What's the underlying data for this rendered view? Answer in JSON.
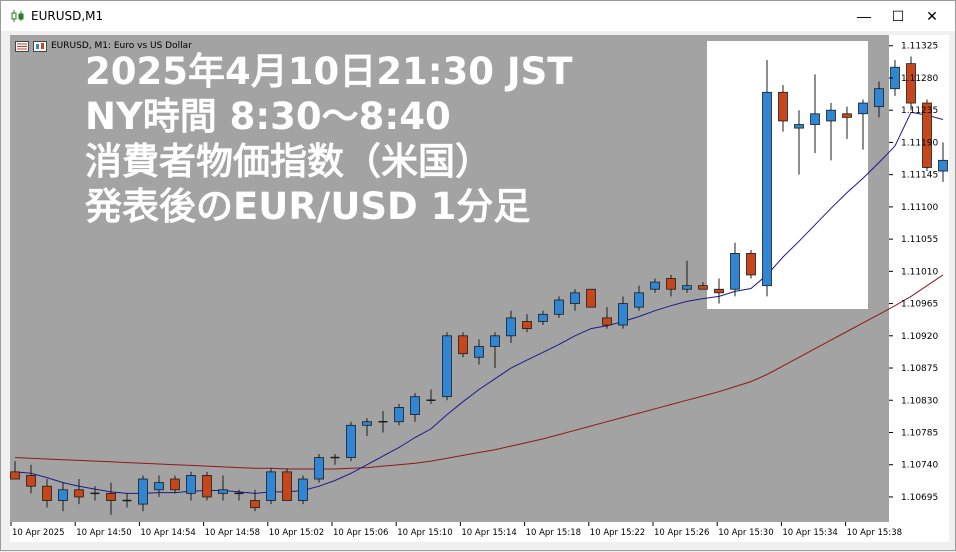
{
  "window": {
    "title": "EURUSD,M1",
    "buttons": {
      "minimize": "—",
      "maximize": "☐",
      "close": "✕"
    }
  },
  "chart_header": {
    "text": "EURUSD, M1:  Euro vs US Dollar"
  },
  "overlay": {
    "line1": "2025年4月10日21:30 JST",
    "line2": "NY時間 8:30～8:40",
    "line3": "消費者物価指数（米国）",
    "line4": "発表後のEUR/USD 1分足"
  },
  "colors": {
    "bull": "#2f86d4",
    "bear": "#c8461c",
    "ma_fast": "#1a1a8c",
    "ma_slow": "#8c1a1a",
    "plot_bg": "#a3a3a3"
  },
  "chart_data": {
    "type": "candlestick",
    "symbol": "EURUSD",
    "timeframe": "M1",
    "ylim": [
      1.1066,
      1.1134
    ],
    "y_ticks": [
      "1.11325",
      "1.11280",
      "1.11235",
      "1.11190",
      "1.11145",
      "1.11100",
      "1.11055",
      "1.11010",
      "1.10965",
      "1.10920",
      "1.10875",
      "1.10830",
      "1.10785",
      "1.10740",
      "1.10695"
    ],
    "x_tick_labels": [
      "10 Apr 2025",
      "10 Apr 14:50",
      "10 Apr 14:54",
      "10 Apr 14:58",
      "10 Apr 15:02",
      "10 Apr 15:06",
      "10 Apr 15:10",
      "10 Apr 15:14",
      "10 Apr 15:18",
      "10 Apr 15:22",
      "10 Apr 15:26",
      "10 Apr 15:30",
      "10 Apr 15:34",
      "10 Apr 15:38"
    ],
    "candles": [
      {
        "o": 1.1073,
        "h": 1.10745,
        "l": 1.1072,
        "c": 1.1072
      },
      {
        "o": 1.10725,
        "h": 1.1074,
        "l": 1.107,
        "c": 1.1071
      },
      {
        "o": 1.1071,
        "h": 1.1072,
        "l": 1.1068,
        "c": 1.1069
      },
      {
        "o": 1.1069,
        "h": 1.10715,
        "l": 1.10675,
        "c": 1.10705
      },
      {
        "o": 1.10705,
        "h": 1.1072,
        "l": 1.10685,
        "c": 1.10695
      },
      {
        "o": 1.107,
        "h": 1.1071,
        "l": 1.1069,
        "c": 1.107
      },
      {
        "o": 1.107,
        "h": 1.10715,
        "l": 1.1067,
        "c": 1.1069
      },
      {
        "o": 1.1069,
        "h": 1.107,
        "l": 1.1068,
        "c": 1.1069
      },
      {
        "o": 1.10685,
        "h": 1.10725,
        "l": 1.10675,
        "c": 1.1072
      },
      {
        "o": 1.10705,
        "h": 1.10725,
        "l": 1.10695,
        "c": 1.10715
      },
      {
        "o": 1.1072,
        "h": 1.10725,
        "l": 1.107,
        "c": 1.10705
      },
      {
        "o": 1.107,
        "h": 1.1073,
        "l": 1.1069,
        "c": 1.10725
      },
      {
        "o": 1.10725,
        "h": 1.1073,
        "l": 1.1069,
        "c": 1.10695
      },
      {
        "o": 1.107,
        "h": 1.10725,
        "l": 1.1069,
        "c": 1.10705
      },
      {
        "o": 1.107,
        "h": 1.10705,
        "l": 1.1069,
        "c": 1.107
      },
      {
        "o": 1.1069,
        "h": 1.10705,
        "l": 1.10675,
        "c": 1.1068
      },
      {
        "o": 1.1069,
        "h": 1.10735,
        "l": 1.10685,
        "c": 1.1073
      },
      {
        "o": 1.1073,
        "h": 1.10735,
        "l": 1.1069,
        "c": 1.1069
      },
      {
        "o": 1.1069,
        "h": 1.10725,
        "l": 1.10685,
        "c": 1.1072
      },
      {
        "o": 1.1072,
        "h": 1.10755,
        "l": 1.10715,
        "c": 1.1075
      },
      {
        "o": 1.1075,
        "h": 1.10755,
        "l": 1.1074,
        "c": 1.1075
      },
      {
        "o": 1.1075,
        "h": 1.108,
        "l": 1.10745,
        "c": 1.10795
      },
      {
        "o": 1.10795,
        "h": 1.10805,
        "l": 1.1078,
        "c": 1.108
      },
      {
        "o": 1.108,
        "h": 1.10815,
        "l": 1.10785,
        "c": 1.108
      },
      {
        "o": 1.108,
        "h": 1.10825,
        "l": 1.10795,
        "c": 1.1082
      },
      {
        "o": 1.1081,
        "h": 1.1084,
        "l": 1.108,
        "c": 1.10835
      },
      {
        "o": 1.1083,
        "h": 1.10845,
        "l": 1.10825,
        "c": 1.1083
      },
      {
        "o": 1.10835,
        "h": 1.10925,
        "l": 1.1083,
        "c": 1.1092
      },
      {
        "o": 1.1092,
        "h": 1.10925,
        "l": 1.1089,
        "c": 1.10895
      },
      {
        "o": 1.1089,
        "h": 1.10915,
        "l": 1.1088,
        "c": 1.10905
      },
      {
        "o": 1.10905,
        "h": 1.10925,
        "l": 1.10875,
        "c": 1.1092
      },
      {
        "o": 1.1092,
        "h": 1.10955,
        "l": 1.1091,
        "c": 1.10945
      },
      {
        "o": 1.1094,
        "h": 1.1095,
        "l": 1.10925,
        "c": 1.1093
      },
      {
        "o": 1.1094,
        "h": 1.10955,
        "l": 1.10935,
        "c": 1.1095
      },
      {
        "o": 1.1095,
        "h": 1.10975,
        "l": 1.10945,
        "c": 1.1097
      },
      {
        "o": 1.10965,
        "h": 1.10985,
        "l": 1.10955,
        "c": 1.1098
      },
      {
        "o": 1.10985,
        "h": 1.10985,
        "l": 1.1096,
        "c": 1.1096
      },
      {
        "o": 1.10945,
        "h": 1.1096,
        "l": 1.1093,
        "c": 1.10935
      },
      {
        "o": 1.10935,
        "h": 1.10975,
        "l": 1.1093,
        "c": 1.10965
      },
      {
        "o": 1.1096,
        "h": 1.1099,
        "l": 1.10955,
        "c": 1.1098
      },
      {
        "o": 1.10985,
        "h": 1.11,
        "l": 1.1098,
        "c": 1.10995
      },
      {
        "o": 1.11,
        "h": 1.11005,
        "l": 1.10975,
        "c": 1.10985
      },
      {
        "o": 1.10985,
        "h": 1.11025,
        "l": 1.1098,
        "c": 1.1099
      },
      {
        "o": 1.1099,
        "h": 1.10995,
        "l": 1.10985,
        "c": 1.10985
      },
      {
        "o": 1.10985,
        "h": 1.11,
        "l": 1.10965,
        "c": 1.1098
      },
      {
        "o": 1.10985,
        "h": 1.1105,
        "l": 1.10975,
        "c": 1.11035
      },
      {
        "o": 1.11035,
        "h": 1.1104,
        "l": 1.11,
        "c": 1.11005
      },
      {
        "o": 1.1099,
        "h": 1.11305,
        "l": 1.10975,
        "c": 1.1126
      },
      {
        "o": 1.1126,
        "h": 1.1127,
        "l": 1.11205,
        "c": 1.1122
      },
      {
        "o": 1.1121,
        "h": 1.11235,
        "l": 1.11145,
        "c": 1.11215
      },
      {
        "o": 1.11215,
        "h": 1.11285,
        "l": 1.11175,
        "c": 1.1123
      },
      {
        "o": 1.1122,
        "h": 1.11245,
        "l": 1.11165,
        "c": 1.11235
      },
      {
        "o": 1.1123,
        "h": 1.1124,
        "l": 1.11195,
        "c": 1.11225
      },
      {
        "o": 1.1123,
        "h": 1.1125,
        "l": 1.1118,
        "c": 1.11245
      },
      {
        "o": 1.1124,
        "h": 1.11275,
        "l": 1.11225,
        "c": 1.11265
      },
      {
        "o": 1.11265,
        "h": 1.11305,
        "l": 1.11255,
        "c": 1.11295
      },
      {
        "o": 1.113,
        "h": 1.1131,
        "l": 1.11235,
        "c": 1.11245
      },
      {
        "o": 1.11245,
        "h": 1.1125,
        "l": 1.1115,
        "c": 1.11155
      },
      {
        "o": 1.1115,
        "h": 1.1119,
        "l": 1.11135,
        "c": 1.11165
      }
    ],
    "ma_fast": [
      1.1073,
      1.10728,
      1.10722,
      1.10715,
      1.1071,
      1.10706,
      1.10702,
      1.107,
      1.107,
      1.10701,
      1.10701,
      1.10703,
      1.10704,
      1.10704,
      1.10702,
      1.107,
      1.10702,
      1.10702,
      1.10704,
      1.1071,
      1.10718,
      1.10728,
      1.1074,
      1.10752,
      1.10764,
      1.10778,
      1.1079,
      1.1081,
      1.10828,
      1.10845,
      1.1086,
      1.10875,
      1.10886,
      1.10897,
      1.10908,
      1.1092,
      1.1093,
      1.10934,
      1.1094,
      1.10947,
      1.10955,
      1.10962,
      1.10968,
      1.10972,
      1.10975,
      1.10982,
      1.10986,
      1.11005,
      1.1103,
      1.11052,
      1.11075,
      1.11098,
      1.1112,
      1.1114,
      1.11162,
      1.11185,
      1.11232,
      1.11228,
      1.11222
    ],
    "ma_slow": [
      1.1075,
      1.10749,
      1.10748,
      1.10747,
      1.10746,
      1.10745,
      1.10744,
      1.10743,
      1.10742,
      1.10741,
      1.1074,
      1.10739,
      1.10738,
      1.10737,
      1.10736,
      1.10735,
      1.10735,
      1.10734,
      1.10734,
      1.10734,
      1.10734,
      1.10735,
      1.10736,
      1.10738,
      1.1074,
      1.10742,
      1.10745,
      1.10749,
      1.10753,
      1.10757,
      1.10761,
      1.10766,
      1.10771,
      1.10776,
      1.10782,
      1.10788,
      1.10794,
      1.108,
      1.10806,
      1.10812,
      1.10818,
      1.10824,
      1.1083,
      1.10836,
      1.10842,
      1.10849,
      1.10856,
      1.10866,
      1.10878,
      1.1089,
      1.10902,
      1.10914,
      1.10926,
      1.10938,
      1.1095,
      1.10962,
      1.10975,
      1.1099,
      1.11005
    ]
  }
}
